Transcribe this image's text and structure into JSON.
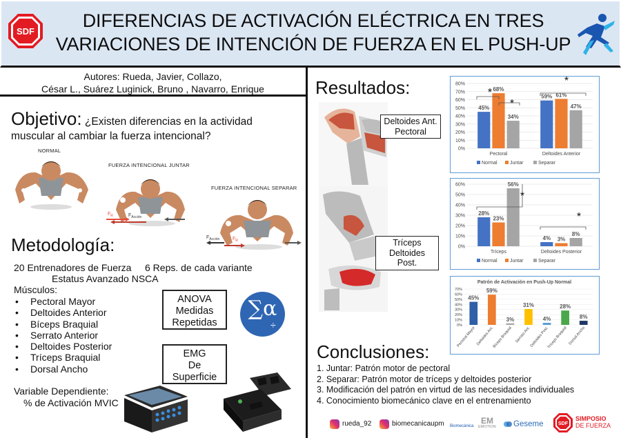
{
  "header": {
    "title_line1": "DIFERENCIAS DE ACTIVACIÓN ELÉCTRICA EN TRES",
    "title_line2": "VARIACIONES DE INTENCIÓN DE FUERZA EN EL PUSH-UP",
    "logo_text": "SDF"
  },
  "authors": {
    "line1": "Autores: Rueda, Javier, Collazo,",
    "line2": "César L., Suárez Luginick, Bruno , Navarro, Enrique"
  },
  "objective": {
    "title": "Objetivo:",
    "text_part1": "¿Existen diferencias en la actividad",
    "text_part2": "muscular al cambiar la fuerza intencional?",
    "pose_normal": "NORMAL",
    "pose_juntar": "FUERZA INTENCIONAL JUNTAR",
    "pose_separar": "FUERZA INTENCIONAL SEPARAR",
    "f_r": "F",
    "f_accion": "F",
    "sub_r": "R",
    "sub_accion": "Acción"
  },
  "methodology": {
    "title": "Metodología:",
    "participants": "20 Entrenadores de Fuerza",
    "reps": "6 Reps. de cada variante",
    "status": "Estatus Avanzado NSCA",
    "muscles_label": "Músculos:",
    "muscles": [
      "Pectoral Mayor",
      "Deltoides Anterior",
      "Bíceps Braquial",
      "Serrato Anterior",
      "Deltoides Posterior",
      "Tríceps Braquial",
      "Dorsal Ancho"
    ],
    "dependent_label": "Variable Dependiente:",
    "dependent_value": "% de Activación MVIC",
    "anova_box": [
      "ANOVA",
      "Medidas",
      "Repetidas"
    ],
    "emg_box": [
      "EMG",
      "De",
      "Superficie"
    ],
    "sigma_symbol": "∑α",
    "sigma_sub": "÷"
  },
  "results": {
    "title": "Resultados:",
    "label_delt_pect": [
      "Deltoides Ant.",
      "Pectoral"
    ],
    "label_tri_delt": [
      "Tríceps",
      "Deltoides Post."
    ]
  },
  "conclusions": {
    "title": "Conclusiones:",
    "items": [
      "1.  Juntar: Patrón motor de pectoral",
      "2.  Separar: Patrón motor de tríceps y deltoides posterior",
      "3.  Modificación del patrón en virtud de las necesidades individuales",
      "4.  Conocimiento biomecánico clave en el entrenamiento"
    ]
  },
  "footer": {
    "ig1": "rueda_92",
    "ig2": "biomecanicaupm",
    "brand1": "Biomecánica",
    "brand2": "EMOTION",
    "brand3": "Geseme",
    "brand4a": "SIMPOSIO",
    "brand4b": "DE FUERZA",
    "brand4_logo": "SDF"
  },
  "colors": {
    "normal": "#4472c4",
    "juntar": "#ed7d31",
    "separar": "#a5a5a5",
    "pattern_colors": [
      "#2e5fa8",
      "#ed7d31",
      "#a5a5a5",
      "#ffc000",
      "#5b9bd5",
      "#4aa74a",
      "#1f3864"
    ]
  },
  "chart_data": [
    {
      "type": "bar",
      "categories": [
        "Pectoral",
        "Deltoides Anterior"
      ],
      "series": [
        {
          "name": "Normal",
          "values": [
            45,
            59
          ]
        },
        {
          "name": "Juntar",
          "values": [
            68,
            61
          ]
        },
        {
          "name": "Separar",
          "values": [
            34,
            47
          ]
        }
      ],
      "data_labels": [
        "45%",
        "68%",
        "34%",
        "59%",
        "61%",
        "47%"
      ],
      "ylim": [
        0,
        80
      ],
      "yticks": [
        "0%",
        "10%",
        "20%",
        "30%",
        "40%",
        "50%",
        "60%",
        "70%",
        "80%"
      ],
      "legend": "bottom",
      "annotation": "*"
    },
    {
      "type": "bar",
      "categories": [
        "Tríceps",
        "Deltoides Posterior"
      ],
      "series": [
        {
          "name": "Normal",
          "values": [
            28,
            4
          ]
        },
        {
          "name": "Juntar",
          "values": [
            23,
            3
          ]
        },
        {
          "name": "Separar",
          "values": [
            56,
            8
          ]
        }
      ],
      "data_labels": [
        "28%",
        "23%",
        "56%",
        "4%",
        "3%",
        "8%"
      ],
      "ylim": [
        0,
        60
      ],
      "yticks": [
        "0%",
        "10%",
        "20%",
        "30%",
        "40%",
        "50%",
        "60%"
      ],
      "legend": "bottom",
      "annotation": "*"
    },
    {
      "type": "bar",
      "title": "Patrón de Activación en Push-Up Normal",
      "categories": [
        "Pectoral Mayor",
        "Deltoides Ant.",
        "Bíceps Braquial",
        "Serrato Ant.",
        "Deltoides Post.",
        "Tríceps Braquial",
        "Dorsal Ancho"
      ],
      "values": [
        45,
        59,
        3,
        31,
        4,
        28,
        8
      ],
      "data_labels": [
        "45%",
        "59%",
        "3%",
        "31%",
        "4%",
        "28%",
        "8%"
      ],
      "ylim": [
        0,
        70
      ],
      "yticks": [
        "0%",
        "10%",
        "20%",
        "30%",
        "40%",
        "50%",
        "60%",
        "70%"
      ]
    }
  ]
}
